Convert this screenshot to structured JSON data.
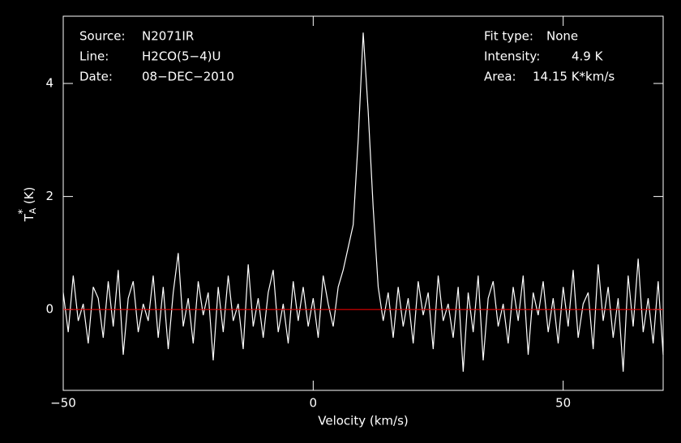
{
  "chart_data": {
    "type": "line",
    "xlabel": "Velocity (km/s)",
    "ylabel": {
      "main": "T",
      "sub": "A",
      "sup": "*",
      "unit": "(K)"
    },
    "annotations_left": [
      {
        "label": "Source:",
        "value": "N2071IR"
      },
      {
        "label": "Line:",
        "value": "H2CO(5−4)U"
      },
      {
        "label": "Date:",
        "value": "08−DEC−2010"
      }
    ],
    "annotations_right": [
      {
        "label": "Fit type:",
        "value": "None"
      },
      {
        "label": "Intensity:",
        "value": "4.9 K"
      },
      {
        "label": "Area:",
        "value": "14.15 K*km/s"
      }
    ],
    "xlim": [
      -50,
      70
    ],
    "ylim": [
      -1.43,
      5.19
    ],
    "xticks": [
      {
        "value": -50,
        "label": "−50"
      },
      0,
      50
    ],
    "yticks": [
      0,
      2,
      4
    ],
    "baseline": {
      "value": 0,
      "color": "#e00000"
    },
    "x": [
      -50,
      -49,
      -48,
      -47,
      -46,
      -45,
      -44,
      -43,
      -42,
      -41,
      -40,
      -39,
      -38,
      -37,
      -36,
      -35,
      -34,
      -33,
      -32,
      -31,
      -30,
      -29,
      -28,
      -27,
      -26,
      -25,
      -24,
      -23,
      -22,
      -21,
      -20,
      -19,
      -18,
      -17,
      -16,
      -15,
      -14,
      -13,
      -12,
      -11,
      -10,
      -9,
      -8,
      -7,
      -6,
      -5,
      -4,
      -3,
      -2,
      -1,
      0,
      1,
      2,
      3,
      4,
      5,
      6,
      7,
      8,
      9,
      10,
      11,
      12,
      13,
      14,
      15,
      16,
      17,
      18,
      19,
      20,
      21,
      22,
      23,
      24,
      25,
      26,
      27,
      28,
      29,
      30,
      31,
      32,
      33,
      34,
      35,
      36,
      37,
      38,
      39,
      40,
      41,
      42,
      43,
      44,
      45,
      46,
      47,
      48,
      49,
      50,
      51,
      52,
      53,
      54,
      55,
      56,
      57,
      58,
      59,
      60,
      61,
      62,
      63,
      64,
      65,
      66,
      67,
      68,
      69,
      70
    ],
    "series": [
      {
        "color": "#ffffff",
        "values": [
          0.3,
          -0.4,
          0.6,
          -0.2,
          0.1,
          -0.6,
          0.4,
          0.2,
          -0.5,
          0.5,
          -0.3,
          0.7,
          -0.8,
          0.2,
          0.5,
          -0.4,
          0.1,
          -0.2,
          0.6,
          -0.5,
          0.4,
          -0.7,
          0.3,
          1.0,
          -0.3,
          0.2,
          -0.6,
          0.5,
          -0.1,
          0.3,
          -0.9,
          0.4,
          -0.4,
          0.6,
          -0.2,
          0.1,
          -0.7,
          0.8,
          -0.3,
          0.2,
          -0.5,
          0.3,
          0.7,
          -0.4,
          0.1,
          -0.6,
          0.5,
          -0.2,
          0.4,
          -0.3,
          0.2,
          -0.5,
          0.6,
          0.1,
          -0.3,
          0.4,
          0.7,
          1.1,
          1.5,
          3.0,
          4.9,
          3.5,
          1.8,
          0.4,
          -0.2,
          0.3,
          -0.5,
          0.4,
          -0.3,
          0.2,
          -0.6,
          0.5,
          -0.1,
          0.3,
          -0.7,
          0.6,
          -0.2,
          0.1,
          -0.5,
          0.4,
          -1.1,
          0.3,
          -0.4,
          0.6,
          -0.9,
          0.2,
          0.5,
          -0.3,
          0.1,
          -0.6,
          0.4,
          -0.2,
          0.6,
          -0.8,
          0.3,
          -0.1,
          0.5,
          -0.4,
          0.2,
          -0.6,
          0.4,
          -0.3,
          0.7,
          -0.5,
          0.1,
          0.3,
          -0.7,
          0.8,
          -0.2,
          0.4,
          -0.5,
          0.2,
          -1.1,
          0.6,
          -0.3,
          0.9,
          -0.4,
          0.2,
          -0.6,
          0.5,
          -0.8
        ]
      }
    ]
  }
}
